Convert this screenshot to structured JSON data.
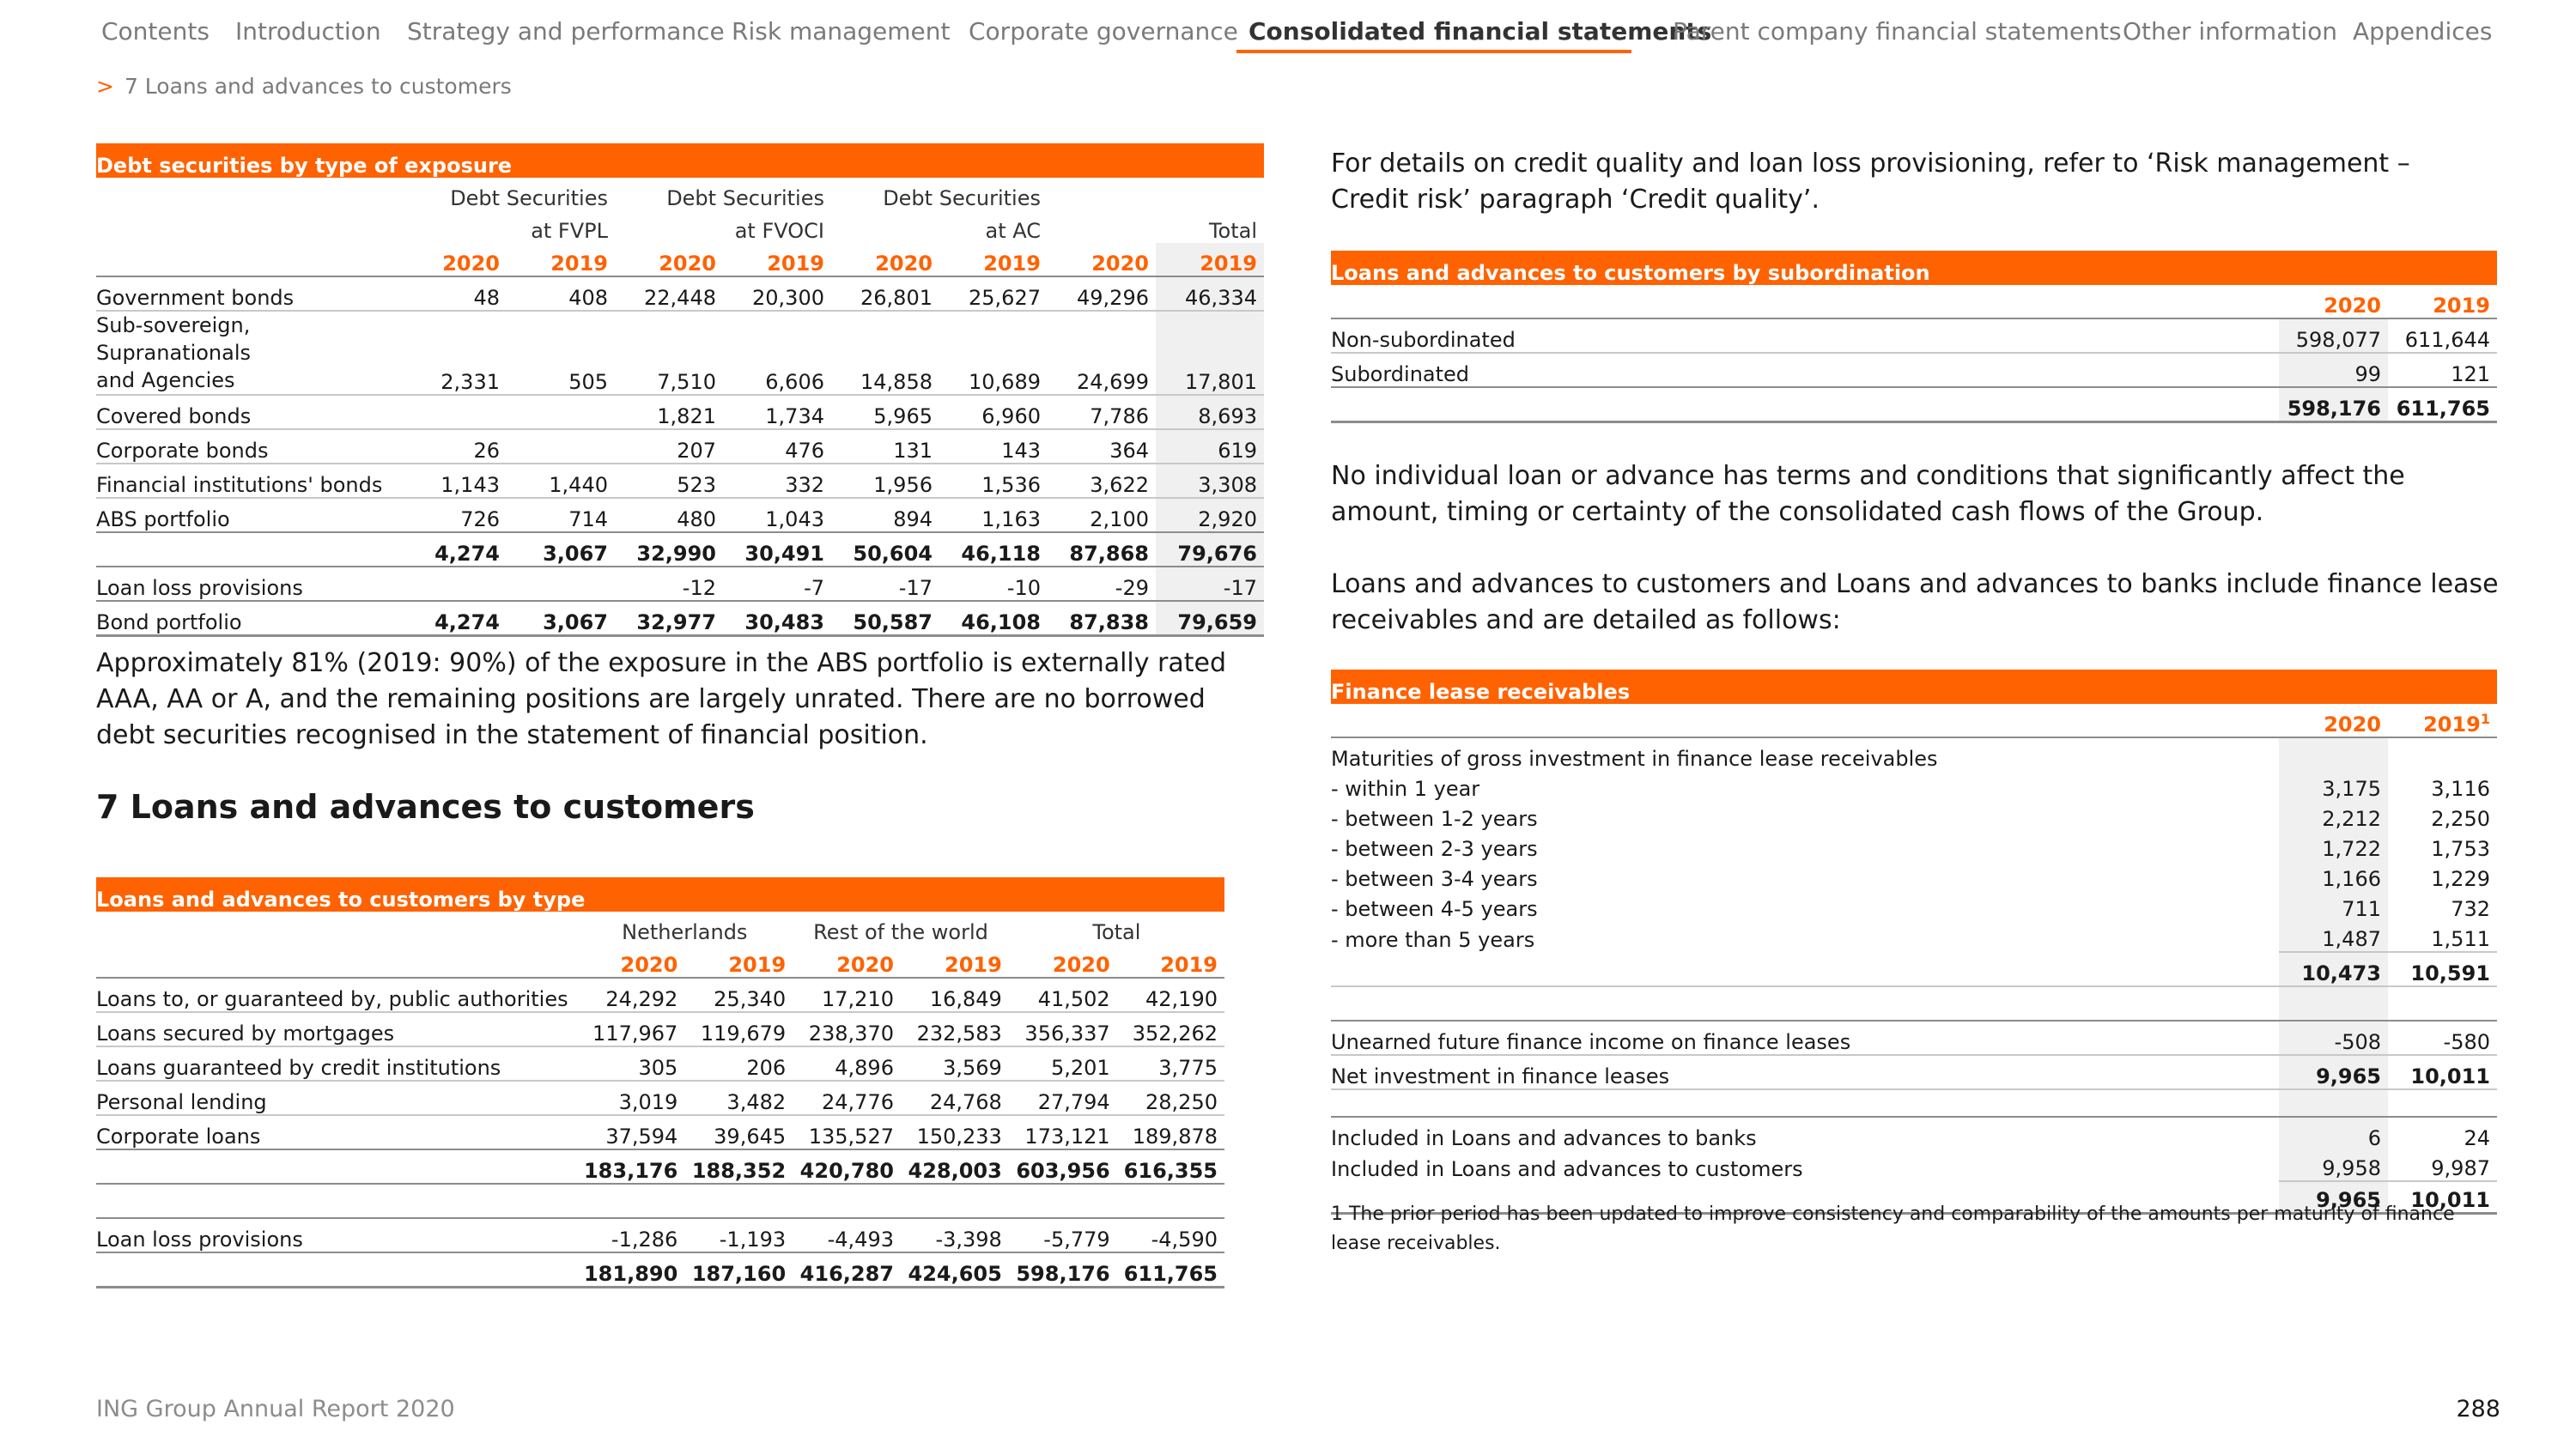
{
  "nav": {
    "items": [
      "Contents",
      "Introduction",
      "Strategy and performance",
      "Risk management",
      "Corporate governance",
      "Consolidated financial statements",
      "Parent company financial statements",
      "Other information",
      "Appendices"
    ],
    "active_index": 5,
    "accent": "#ff6200"
  },
  "breadcrumb": {
    "arrow": ">",
    "text": "7  Loans and advances to customers"
  },
  "debt": {
    "title": "Debt securities by type of exposure",
    "groups": [
      {
        "l1": "Debt Securities",
        "l2": "at FVPL"
      },
      {
        "l1": "Debt Securities",
        "l2": "at FVOCI"
      },
      {
        "l1": "Debt Securities",
        "l2": "at AC"
      },
      {
        "l1": "",
        "l2": "Total"
      }
    ],
    "years": [
      "2020",
      "2019",
      "2020",
      "2019",
      "2020",
      "2019",
      "2020",
      "2019"
    ],
    "rows": [
      {
        "label": "Government bonds",
        "v": [
          "48",
          "408",
          "22,448",
          "20,300",
          "26,801",
          "25,627",
          "49,296",
          "46,334"
        ]
      },
      {
        "label": "Sub-sovereign, Supranationals",
        "label2": "and Agencies",
        "v": [
          "2,331",
          "505",
          "7,510",
          "6,606",
          "14,858",
          "10,689",
          "24,699",
          "17,801"
        ]
      },
      {
        "label": "Covered bonds",
        "v": [
          "",
          "",
          "1,821",
          "1,734",
          "5,965",
          "6,960",
          "7,786",
          "8,693"
        ]
      },
      {
        "label": "Corporate bonds",
        "v": [
          "26",
          "",
          "207",
          "476",
          "131",
          "143",
          "364",
          "619"
        ]
      },
      {
        "label": "Financial institutions' bonds",
        "v": [
          "1,143",
          "1,440",
          "523",
          "332",
          "1,956",
          "1,536",
          "3,622",
          "3,308"
        ]
      },
      {
        "label": "ABS portfolio",
        "v": [
          "726",
          "714",
          "480",
          "1,043",
          "894",
          "1,163",
          "2,100",
          "2,920"
        ]
      }
    ],
    "subtotal": [
      "4,274",
      "3,067",
      "32,990",
      "30,491",
      "50,604",
      "46,118",
      "87,868",
      "79,676"
    ],
    "llp": {
      "label": "Loan loss provisions",
      "v": [
        "",
        "",
        "-12",
        "-7",
        "-17",
        "-10",
        "-29",
        "-17"
      ]
    },
    "bond": {
      "label": "Bond portfolio",
      "v": [
        "4,274",
        "3,067",
        "32,977",
        "30,483",
        "50,587",
        "46,108",
        "87,838",
        "79,659"
      ]
    }
  },
  "abs_para": "Approximately 81% (2019: 90%) of the exposure in the ABS portfolio is externally rated AAA, AA or A, and the remaining positions are largely unrated. There are no borrowed debt securities recognised in the statement of financial position.",
  "section_title": "7  Loans and advances to customers",
  "loans": {
    "title": "Loans and advances to customers by type",
    "groups": [
      "Netherlands",
      "Rest of the world",
      "Total"
    ],
    "years": [
      "2020",
      "2019",
      "2020",
      "2019",
      "2020",
      "2019"
    ],
    "rows": [
      {
        "label": "Loans to, or guaranteed by, public authorities",
        "v": [
          "24,292",
          "25,340",
          "17,210",
          "16,849",
          "41,502",
          "42,190"
        ]
      },
      {
        "label": "Loans secured by mortgages",
        "v": [
          "117,967",
          "119,679",
          "238,370",
          "232,583",
          "356,337",
          "352,262"
        ]
      },
      {
        "label": "Loans guaranteed by credit institutions",
        "v": [
          "305",
          "206",
          "4,896",
          "3,569",
          "5,201",
          "3,775"
        ]
      },
      {
        "label": "Personal lending",
        "v": [
          "3,019",
          "3,482",
          "24,776",
          "24,768",
          "27,794",
          "28,250"
        ]
      },
      {
        "label": "Corporate loans",
        "v": [
          "37,594",
          "39,645",
          "135,527",
          "150,233",
          "173,121",
          "189,878"
        ]
      }
    ],
    "subtotal": [
      "183,176",
      "188,352",
      "420,780",
      "428,003",
      "603,956",
      "616,355"
    ],
    "llp": {
      "label": "Loan loss provisions",
      "v": [
        "-1,286",
        "-1,193",
        "-4,493",
        "-3,398",
        "-5,779",
        "-4,590"
      ]
    },
    "total": [
      "181,890",
      "187,160",
      "416,287",
      "424,605",
      "598,176",
      "611,765"
    ]
  },
  "credit_para": "For details on credit quality and loan loss provisioning, refer to ‘Risk management – Credit risk’ paragraph ‘Credit quality’.",
  "subord": {
    "title": "Loans and advances to customers by subordination",
    "years": [
      "2020",
      "2019"
    ],
    "rows": [
      {
        "label": "Non-subordinated",
        "v": [
          "598,077",
          "611,644"
        ]
      },
      {
        "label": "Subordinated",
        "v": [
          "99",
          "121"
        ]
      }
    ],
    "total": [
      "598,176",
      "611,765"
    ]
  },
  "no_loan_para": "No individual loan or advance has terms and conditions that significantly affect the amount, timing or certainty of the consolidated cash flows of the Group.",
  "lease_para": "Loans and advances to customers and Loans and advances to banks include finance lease receivables and are detailed as follows:",
  "lease": {
    "title": "Finance lease receivables",
    "year1": "2020",
    "year2": "2019",
    "year2_sup": "1",
    "maturities_label": "Maturities of gross investment in finance lease receivables",
    "rows": [
      {
        "label": "-  within 1 year",
        "v": [
          "3,175",
          "3,116"
        ]
      },
      {
        "label": "-  between 1-2 years",
        "v": [
          "2,212",
          "2,250"
        ]
      },
      {
        "label": "-  between 2-3 years",
        "v": [
          "1,722",
          "1,753"
        ]
      },
      {
        "label": "-  between 3-4 years",
        "v": [
          "1,166",
          "1,229"
        ]
      },
      {
        "label": "-  between 4-5 years",
        "v": [
          "711",
          "732"
        ]
      },
      {
        "label": "-  more than 5 years",
        "v": [
          "1,487",
          "1,511"
        ]
      }
    ],
    "gross_total": [
      "10,473",
      "10,591"
    ],
    "unearned": {
      "label": "Unearned future finance income on finance leases",
      "v": [
        "-508",
        "-580"
      ]
    },
    "net": {
      "label": "Net investment in finance leases",
      "v": [
        "9,965",
        "10,011"
      ]
    },
    "banks": {
      "label": "Included in Loans and advances to banks",
      "v": [
        "6",
        "24"
      ]
    },
    "customers": {
      "label": "Included in Loans and advances to customers",
      "v": [
        "9,958",
        "9,987"
      ]
    },
    "total": [
      "9,965",
      "10,011"
    ],
    "footnote": "1 The prior period has been updated to improve consistency and comparability of the amounts per maturity of finance lease receivables."
  },
  "footer": {
    "left": "ING Group Annual Report 2020",
    "page": "288"
  }
}
